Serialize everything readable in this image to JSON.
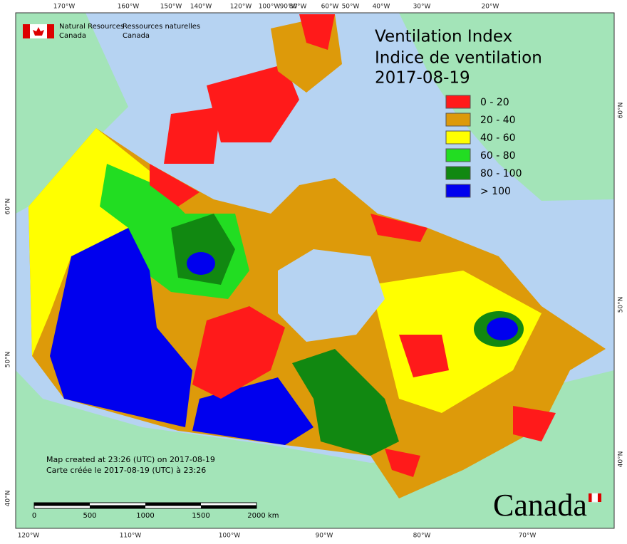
{
  "header": {
    "org_en": [
      "Natural Resources",
      "Canada"
    ],
    "org_fr": [
      "Ressources naturelles",
      "Canada"
    ]
  },
  "title": [
    "Ventilation Index",
    "Indice de ventilation",
    "2017-08-19"
  ],
  "legend": [
    {
      "label": "0 - 20",
      "color": "#ff1a1a"
    },
    {
      "label": "20 - 40",
      "color": "#dd9a0a"
    },
    {
      "label": "40 - 60",
      "color": "#ffff00"
    },
    {
      "label": "60 - 80",
      "color": "#22dd22"
    },
    {
      "label": "80 - 100",
      "color": "#118811"
    },
    {
      "label": "> 100",
      "color": "#0000ee"
    }
  ],
  "graticule": {
    "top": [
      "170°W",
      "160°W",
      "150°W",
      "140°W",
      "120°W",
      "100°W",
      "90°W",
      "80°W",
      "60°W",
      "50°W",
      "40°W",
      "30°W",
      "20°W"
    ],
    "bottom": [
      "120°W",
      "110°W",
      "100°W",
      "90°W",
      "80°W",
      "70°W"
    ],
    "left": [
      "60°N",
      "50°N",
      "40°N"
    ],
    "right": [
      "60°N",
      "50°N",
      "40°N"
    ]
  },
  "notes": [
    "Map created at 23:26 (UTC) on 2017-08-19",
    "Carte créée le 2017-08-19 (UTC) à 23:26"
  ],
  "scale_bar": {
    "labels": [
      0,
      500,
      1000,
      1500,
      2000
    ],
    "unit": "km"
  },
  "wordmark": "Canada"
}
